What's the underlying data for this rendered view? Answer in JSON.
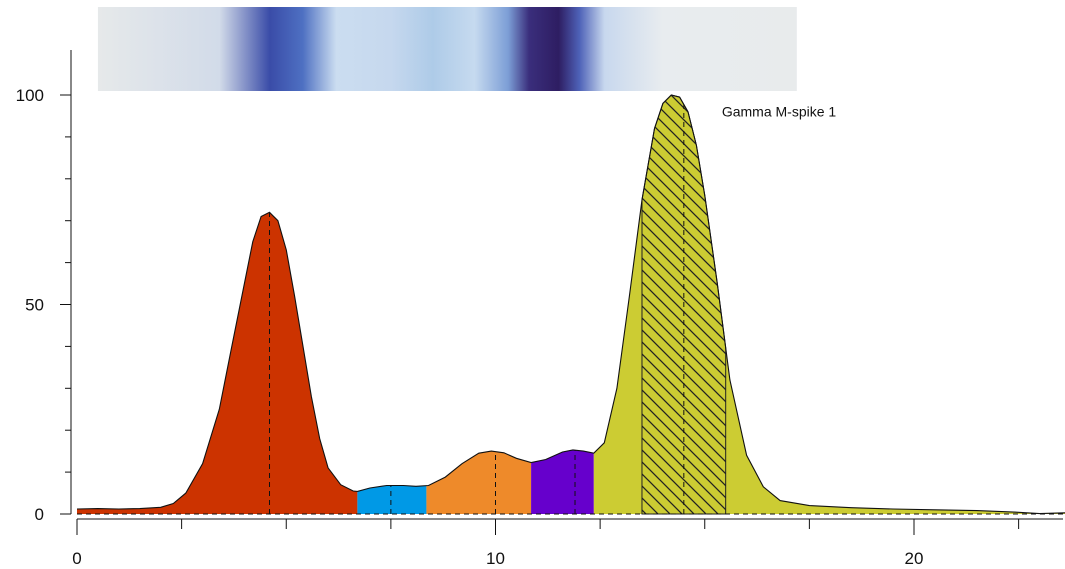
{
  "chart_data": {
    "type": "area",
    "title": "",
    "xlabel": "",
    "ylabel": "",
    "xlim": [
      0,
      23.7
    ],
    "ylim": [
      0,
      110
    ],
    "x_ticks": [
      0,
      10,
      20
    ],
    "x_tick_labels": [
      "0",
      "10",
      "20"
    ],
    "x_minor_ticks": [
      2.5,
      5,
      7.5,
      12.5,
      15,
      17.5,
      22.5
    ],
    "y_ticks": [
      0,
      50,
      100
    ],
    "y_tick_labels": [
      "0",
      "50",
      "100"
    ],
    "y_minor_ticks": [
      10,
      20,
      30,
      40,
      60,
      70,
      80,
      90
    ],
    "grid": false,
    "legend": "none",
    "series": [
      {
        "x": [
          0,
          0.5,
          1,
          1.5,
          2,
          2.3,
          2.6,
          3,
          3.4,
          3.7,
          4,
          4.2,
          4.4,
          4.6,
          4.8,
          5,
          5.2,
          5.4,
          5.6,
          5.8,
          6,
          6.3,
          6.6,
          6.7,
          7,
          7.4,
          7.8,
          8.1,
          8.4,
          8.8,
          9.2,
          9.6,
          9.9,
          10.2,
          10.5,
          10.85,
          11.2,
          11.6,
          11.85,
          12.1,
          12.35,
          12.6,
          12.9,
          13.2,
          13.5,
          13.8,
          14,
          14.2,
          14.4,
          14.6,
          14.8,
          15,
          15.3,
          15.6,
          16,
          16.4,
          16.8,
          17.5,
          18.5,
          19.5,
          20.5,
          21.5,
          22.5,
          23,
          23.7
        ],
        "y": [
          1.2,
          1.3,
          1.2,
          1.3,
          1.6,
          2.5,
          5,
          12,
          25,
          40,
          55,
          65,
          71,
          72,
          70,
          63,
          52,
          40,
          28,
          18,
          11,
          7,
          5.5,
          5.4,
          6.2,
          6.8,
          6.8,
          6.6,
          6.8,
          8.8,
          12,
          14.5,
          15,
          14.6,
          13.3,
          12.3,
          13,
          14.8,
          15.3,
          15,
          14.5,
          17,
          30,
          52,
          75,
          92,
          98,
          100,
          99.5,
          96,
          88,
          76,
          55,
          32,
          14,
          6.5,
          3.2,
          2,
          1.5,
          1.2,
          1,
          0.8,
          0.4,
          0.1,
          0.3
        ]
      }
    ],
    "fractions": [
      {
        "from": 0,
        "to": 6.7,
        "peak": 4.6,
        "color": "#CC3300"
      },
      {
        "from": 6.7,
        "to": 8.35,
        "peak": 7.5,
        "color": "#0099E6"
      },
      {
        "from": 8.35,
        "to": 10.85,
        "peak": 10.0,
        "color": "#EE8A2A"
      },
      {
        "from": 10.85,
        "to": 12.35,
        "peak": 11.9,
        "color": "#6600CC"
      },
      {
        "from": 12.35,
        "to": 23.7,
        "peak": null,
        "color": "#CCCC33"
      }
    ],
    "spike": {
      "from": 13.5,
      "to": 15.5,
      "peak": 14.5,
      "label": "Gamma M-spike 1"
    },
    "gel_band_stops": [
      {
        "x": 0,
        "color": "#E6E9EA"
      },
      {
        "x": 3.4,
        "color": "#D2DBE9"
      },
      {
        "x": 4.6,
        "color": "#3A4CA8"
      },
      {
        "x": 5.4,
        "color": "#4E70C2"
      },
      {
        "x": 6.2,
        "color": "#CBDDF0"
      },
      {
        "x": 7.5,
        "color": "#C6D8EE"
      },
      {
        "x": 8.5,
        "color": "#AECBE8"
      },
      {
        "x": 9.5,
        "color": "#C6DAEF"
      },
      {
        "x": 10.3,
        "color": "#7C9ED6"
      },
      {
        "x": 10.8,
        "color": "#3A2E7C"
      },
      {
        "x": 11.5,
        "color": "#2E1D62"
      },
      {
        "x": 12.0,
        "color": "#4E62B8"
      },
      {
        "x": 12.6,
        "color": "#C8D8EE"
      },
      {
        "x": 14,
        "color": "#E8ECEF"
      },
      {
        "x": 17.2,
        "color": "#E8EBEC"
      }
    ],
    "gel_range": [
      0.5,
      17.2
    ]
  }
}
